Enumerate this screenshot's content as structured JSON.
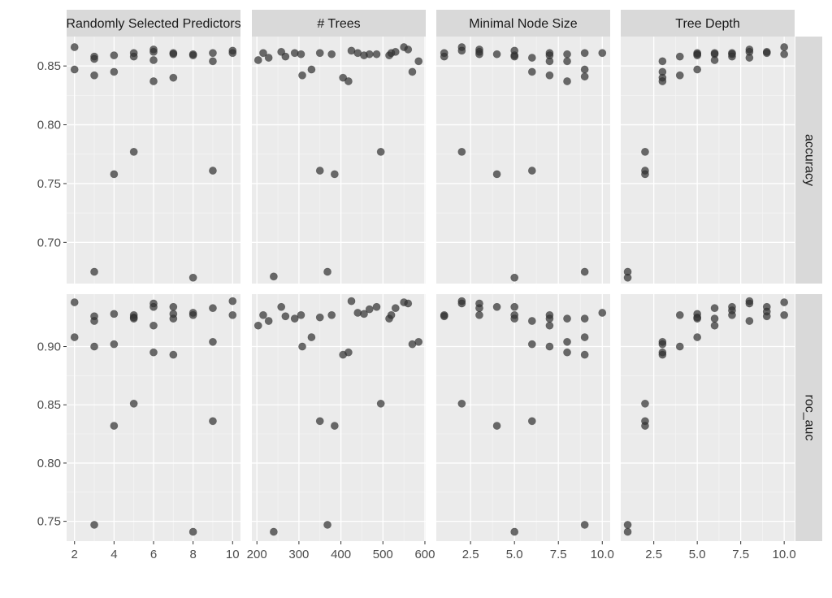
{
  "chart_data": {
    "type": "scatter",
    "facet_columns": [
      "Randomly Selected Predictors",
      "# Trees",
      "Minimal Node Size",
      "Tree Depth"
    ],
    "facet_rows": [
      "accuracy",
      "roc_auc"
    ],
    "row_ylim": [
      [
        0.665,
        0.875
      ],
      [
        0.733,
        0.945
      ]
    ],
    "row_yticks": [
      [
        0.7,
        0.75,
        0.8,
        0.85
      ],
      [
        0.75,
        0.8,
        0.85,
        0.9
      ]
    ],
    "row_ytick_labels": [
      [
        "0.70",
        "0.75",
        "0.80",
        "0.85"
      ],
      [
        "0.75",
        "0.80",
        "0.85",
        "0.90"
      ]
    ],
    "col_xlim": [
      [
        1.6,
        10.4
      ],
      [
        188,
        602
      ],
      [
        0.55,
        10.45
      ],
      [
        0.6,
        10.6
      ]
    ],
    "col_xticks": [
      [
        2,
        4,
        6,
        8,
        10
      ],
      [
        200,
        300,
        400,
        500,
        600
      ],
      [
        2.5,
        5.0,
        7.5,
        10.0
      ],
      [
        2.5,
        5.0,
        7.5,
        10.0
      ]
    ],
    "col_xtick_labels": [
      [
        "2",
        "4",
        "6",
        "8",
        "10"
      ],
      [
        "200",
        "300",
        "400",
        "500",
        "600"
      ],
      [
        "2.5",
        "5.0",
        "7.5",
        "10.0"
      ],
      [
        "2.5",
        "5.0",
        "7.5",
        "10.0"
      ]
    ],
    "point_color": "#333333",
    "panel_background": "#ebebeb",
    "strip_background": "#d9d9d9",
    "grid": true,
    "panels": [
      {
        "row": 0,
        "col": 0,
        "points": [
          [
            2,
            0.866
          ],
          [
            2,
            0.847
          ],
          [
            3,
            0.858
          ],
          [
            3,
            0.856
          ],
          [
            3,
            0.842
          ],
          [
            3,
            0.675
          ],
          [
            4,
            0.859
          ],
          [
            4,
            0.845
          ],
          [
            4,
            0.758
          ],
          [
            5,
            0.861
          ],
          [
            5,
            0.858
          ],
          [
            5,
            0.777
          ],
          [
            6,
            0.864
          ],
          [
            6,
            0.862
          ],
          [
            6,
            0.855
          ],
          [
            6,
            0.837
          ],
          [
            7,
            0.861
          ],
          [
            7,
            0.86
          ],
          [
            7,
            0.84
          ],
          [
            8,
            0.86
          ],
          [
            8,
            0.859
          ],
          [
            8,
            0.67
          ],
          [
            9,
            0.861
          ],
          [
            9,
            0.854
          ],
          [
            9,
            0.761
          ],
          [
            10,
            0.863
          ],
          [
            10,
            0.861
          ]
        ]
      },
      {
        "row": 0,
        "col": 1,
        "points": [
          [
            203,
            0.855
          ],
          [
            215,
            0.861
          ],
          [
            228,
            0.857
          ],
          [
            240,
            0.671
          ],
          [
            258,
            0.862
          ],
          [
            268,
            0.858
          ],
          [
            290,
            0.861
          ],
          [
            305,
            0.86
          ],
          [
            308,
            0.842
          ],
          [
            330,
            0.847
          ],
          [
            350,
            0.861
          ],
          [
            350,
            0.761
          ],
          [
            368,
            0.675
          ],
          [
            378,
            0.86
          ],
          [
            385,
            0.758
          ],
          [
            405,
            0.84
          ],
          [
            418,
            0.837
          ],
          [
            425,
            0.863
          ],
          [
            440,
            0.861
          ],
          [
            455,
            0.859
          ],
          [
            468,
            0.86
          ],
          [
            485,
            0.86
          ],
          [
            495,
            0.777
          ],
          [
            515,
            0.859
          ],
          [
            520,
            0.861
          ],
          [
            530,
            0.862
          ],
          [
            550,
            0.866
          ],
          [
            560,
            0.864
          ],
          [
            570,
            0.845
          ],
          [
            585,
            0.854
          ]
        ]
      },
      {
        "row": 0,
        "col": 2,
        "points": [
          [
            1,
            0.861
          ],
          [
            1,
            0.858
          ],
          [
            2,
            0.866
          ],
          [
            2,
            0.863
          ],
          [
            2,
            0.777
          ],
          [
            3,
            0.864
          ],
          [
            3,
            0.862
          ],
          [
            3,
            0.86
          ],
          [
            4,
            0.86
          ],
          [
            4,
            0.758
          ],
          [
            5,
            0.863
          ],
          [
            5,
            0.859
          ],
          [
            5,
            0.858
          ],
          [
            5,
            0.67
          ],
          [
            6,
            0.857
          ],
          [
            6,
            0.845
          ],
          [
            6,
            0.761
          ],
          [
            7,
            0.861
          ],
          [
            7,
            0.859
          ],
          [
            7,
            0.854
          ],
          [
            7,
            0.842
          ],
          [
            8,
            0.86
          ],
          [
            8,
            0.854
          ],
          [
            8,
            0.837
          ],
          [
            9,
            0.861
          ],
          [
            9,
            0.847
          ],
          [
            9,
            0.841
          ],
          [
            9,
            0.675
          ],
          [
            10,
            0.861
          ]
        ]
      },
      {
        "row": 0,
        "col": 3,
        "points": [
          [
            1,
            0.675
          ],
          [
            1,
            0.67
          ],
          [
            2,
            0.777
          ],
          [
            2,
            0.761
          ],
          [
            2,
            0.758
          ],
          [
            3,
            0.854
          ],
          [
            3,
            0.845
          ],
          [
            3,
            0.84
          ],
          [
            3,
            0.837
          ],
          [
            4,
            0.858
          ],
          [
            4,
            0.842
          ],
          [
            5,
            0.861
          ],
          [
            5,
            0.86
          ],
          [
            5,
            0.859
          ],
          [
            5,
            0.847
          ],
          [
            6,
            0.861
          ],
          [
            6,
            0.86
          ],
          [
            6,
            0.855
          ],
          [
            7,
            0.861
          ],
          [
            7,
            0.86
          ],
          [
            7,
            0.858
          ],
          [
            8,
            0.864
          ],
          [
            8,
            0.862
          ],
          [
            8,
            0.857
          ],
          [
            9,
            0.862
          ],
          [
            9,
            0.861
          ],
          [
            10,
            0.866
          ],
          [
            10,
            0.86
          ]
        ]
      },
      {
        "row": 1,
        "col": 0,
        "points": [
          [
            2,
            0.938
          ],
          [
            2,
            0.908
          ],
          [
            3,
            0.926
          ],
          [
            3,
            0.922
          ],
          [
            3,
            0.9
          ],
          [
            3,
            0.747
          ],
          [
            4,
            0.928
          ],
          [
            4,
            0.902
          ],
          [
            4,
            0.832
          ],
          [
            5,
            0.927
          ],
          [
            5,
            0.925
          ],
          [
            5,
            0.924
          ],
          [
            5,
            0.851
          ],
          [
            6,
            0.937
          ],
          [
            6,
            0.934
          ],
          [
            6,
            0.918
          ],
          [
            6,
            0.895
          ],
          [
            7,
            0.934
          ],
          [
            7,
            0.928
          ],
          [
            7,
            0.924
          ],
          [
            7,
            0.893
          ],
          [
            8,
            0.929
          ],
          [
            8,
            0.927
          ],
          [
            8,
            0.741
          ],
          [
            9,
            0.933
          ],
          [
            9,
            0.904
          ],
          [
            9,
            0.836
          ],
          [
            10,
            0.939
          ],
          [
            10,
            0.927
          ]
        ]
      },
      {
        "row": 1,
        "col": 1,
        "points": [
          [
            203,
            0.918
          ],
          [
            215,
            0.927
          ],
          [
            228,
            0.922
          ],
          [
            240,
            0.741
          ],
          [
            258,
            0.934
          ],
          [
            268,
            0.926
          ],
          [
            290,
            0.924
          ],
          [
            305,
            0.927
          ],
          [
            308,
            0.9
          ],
          [
            330,
            0.908
          ],
          [
            350,
            0.925
          ],
          [
            350,
            0.836
          ],
          [
            368,
            0.747
          ],
          [
            378,
            0.927
          ],
          [
            385,
            0.832
          ],
          [
            405,
            0.893
          ],
          [
            418,
            0.895
          ],
          [
            425,
            0.939
          ],
          [
            440,
            0.929
          ],
          [
            455,
            0.928
          ],
          [
            468,
            0.932
          ],
          [
            485,
            0.934
          ],
          [
            495,
            0.851
          ],
          [
            515,
            0.924
          ],
          [
            520,
            0.927
          ],
          [
            530,
            0.933
          ],
          [
            550,
            0.938
          ],
          [
            560,
            0.937
          ],
          [
            570,
            0.902
          ],
          [
            585,
            0.904
          ]
        ]
      },
      {
        "row": 1,
        "col": 2,
        "points": [
          [
            1,
            0.927
          ],
          [
            1,
            0.926
          ],
          [
            2,
            0.939
          ],
          [
            2,
            0.937
          ],
          [
            2,
            0.851
          ],
          [
            3,
            0.937
          ],
          [
            3,
            0.933
          ],
          [
            3,
            0.927
          ],
          [
            4,
            0.934
          ],
          [
            4,
            0.832
          ],
          [
            5,
            0.934
          ],
          [
            5,
            0.927
          ],
          [
            5,
            0.924
          ],
          [
            5,
            0.741
          ],
          [
            6,
            0.922
          ],
          [
            6,
            0.902
          ],
          [
            6,
            0.836
          ],
          [
            7,
            0.927
          ],
          [
            7,
            0.924
          ],
          [
            7,
            0.918
          ],
          [
            7,
            0.9
          ],
          [
            8,
            0.924
          ],
          [
            8,
            0.904
          ],
          [
            8,
            0.895
          ],
          [
            9,
            0.924
          ],
          [
            9,
            0.908
          ],
          [
            9,
            0.893
          ],
          [
            9,
            0.747
          ],
          [
            10,
            0.929
          ]
        ]
      },
      {
        "row": 1,
        "col": 3,
        "points": [
          [
            1,
            0.747
          ],
          [
            1,
            0.741
          ],
          [
            2,
            0.851
          ],
          [
            2,
            0.836
          ],
          [
            2,
            0.832
          ],
          [
            3,
            0.904
          ],
          [
            3,
            0.902
          ],
          [
            3,
            0.895
          ],
          [
            3,
            0.893
          ],
          [
            4,
            0.927
          ],
          [
            4,
            0.9
          ],
          [
            5,
            0.928
          ],
          [
            5,
            0.925
          ],
          [
            5,
            0.924
          ],
          [
            5,
            0.908
          ],
          [
            6,
            0.933
          ],
          [
            6,
            0.924
          ],
          [
            6,
            0.918
          ],
          [
            7,
            0.934
          ],
          [
            7,
            0.931
          ],
          [
            7,
            0.927
          ],
          [
            8,
            0.939
          ],
          [
            8,
            0.937
          ],
          [
            8,
            0.922
          ],
          [
            9,
            0.934
          ],
          [
            9,
            0.93
          ],
          [
            9,
            0.926
          ],
          [
            10,
            0.938
          ],
          [
            10,
            0.927
          ]
        ]
      }
    ]
  }
}
